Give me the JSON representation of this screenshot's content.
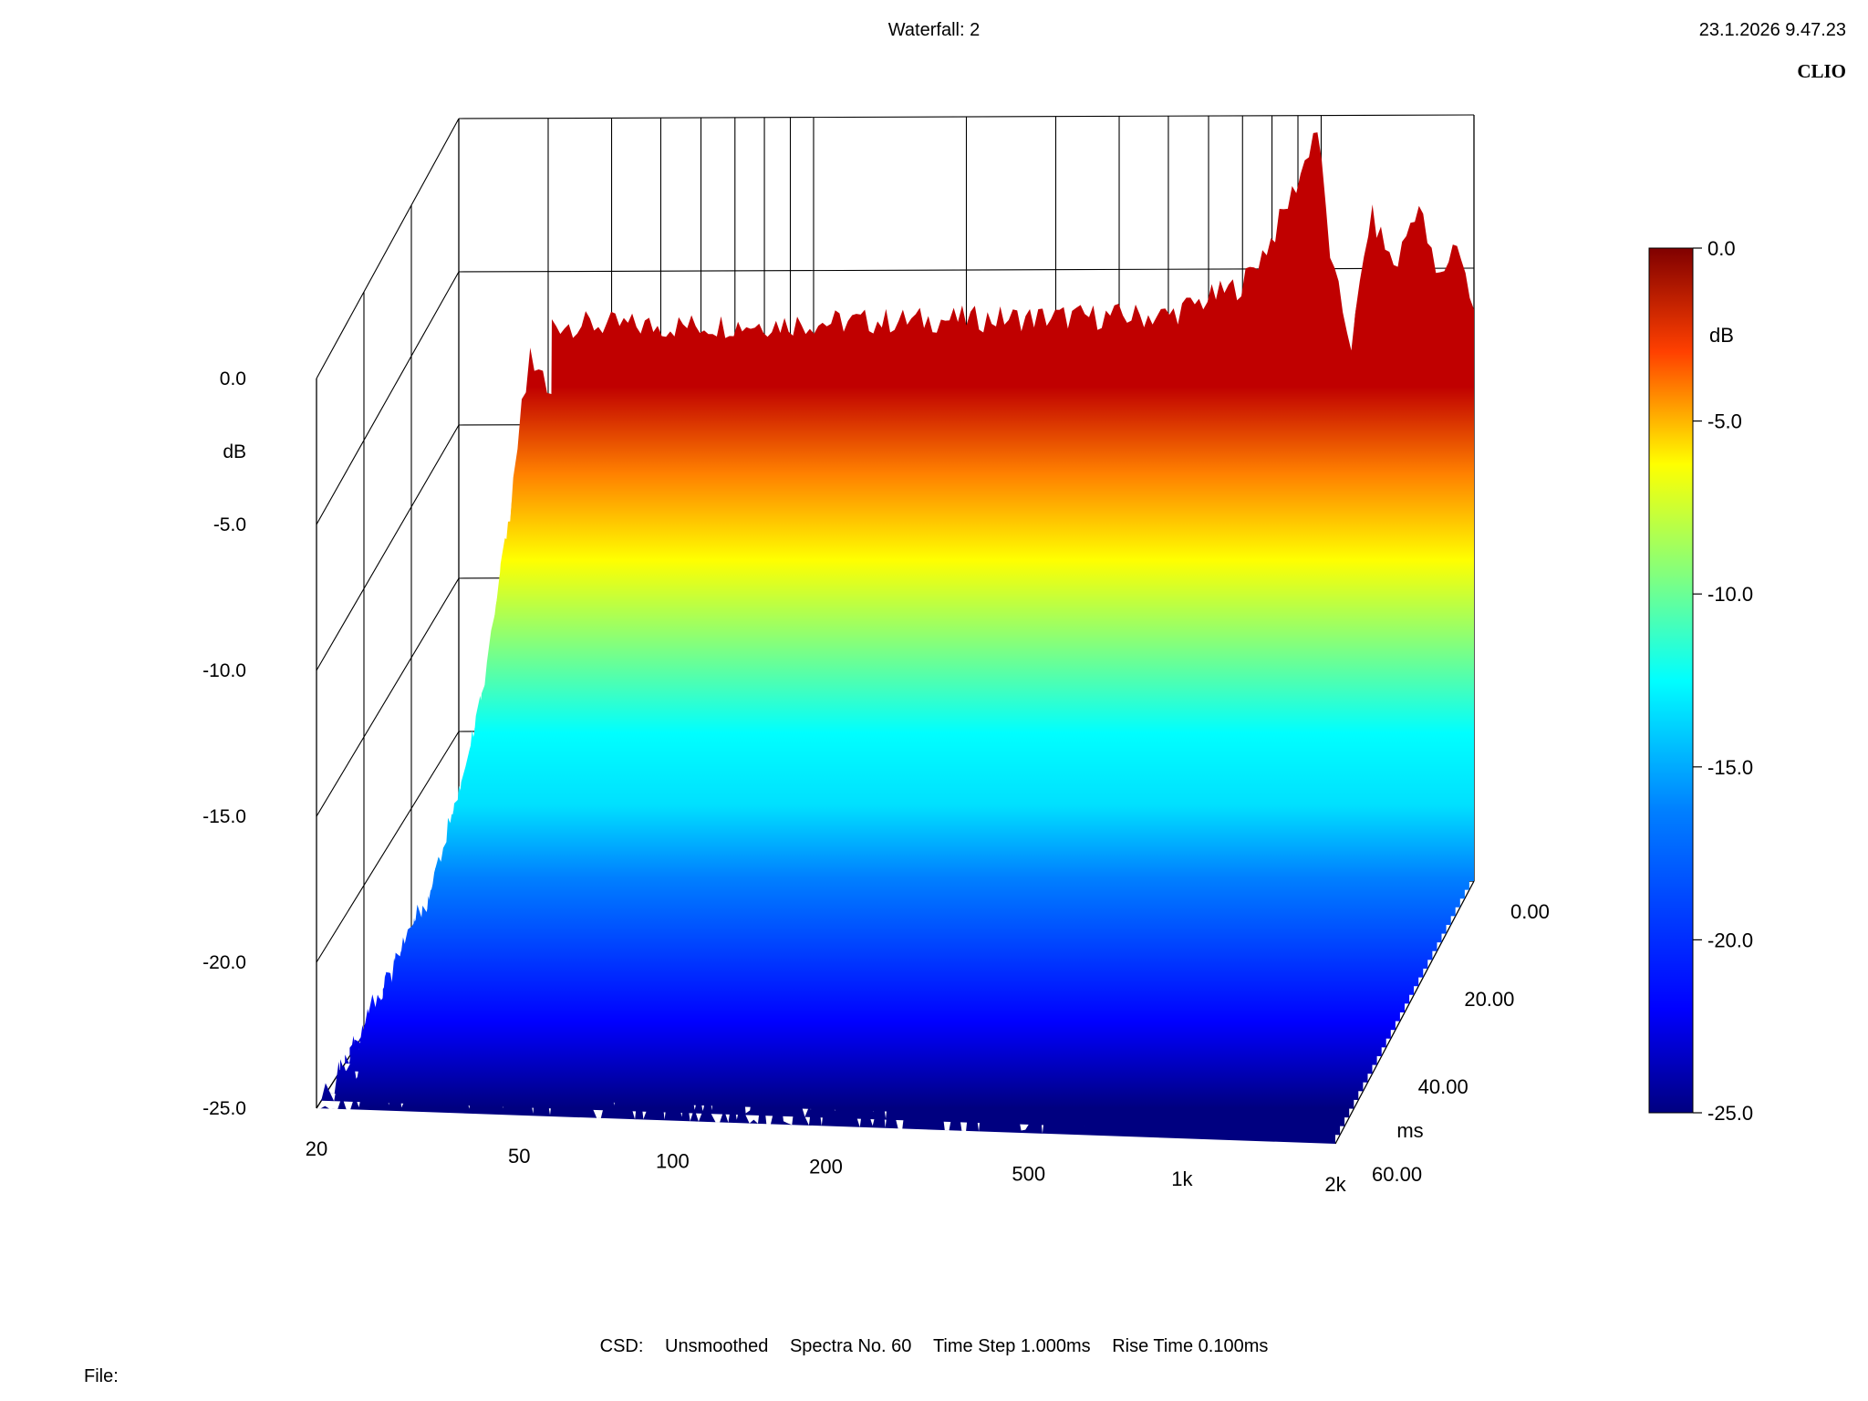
{
  "header": {
    "title": "Waterfall: 2",
    "datetime": "23.1.2026 9.47.23",
    "brand": "CLIO"
  },
  "footer": {
    "type_label": "CSD:",
    "smoothing": "Unsmoothed",
    "spectra": "Spectra No. 60",
    "time_step": "Time Step 1.000ms",
    "rise_time": "Rise Time 0.100ms",
    "file_label": "File:"
  },
  "chart_data": {
    "type": "waterfall",
    "x_ticks": [
      "20",
      "50",
      "100",
      "200",
      "500",
      "1k",
      "2k"
    ],
    "x_tick_values": [
      20,
      50,
      100,
      200,
      500,
      1000,
      2000
    ],
    "x_range": [
      20,
      2000
    ],
    "x_scale": "log",
    "y_ticks": [
      "0.0",
      "-5.0",
      "-10.0",
      "-15.0",
      "-20.0",
      "-25.0"
    ],
    "y_unit": "dB",
    "y_range": [
      -25,
      0
    ],
    "z_ticks": [
      "0.00",
      "20.00",
      "40.00",
      "60.00"
    ],
    "z_unit": "ms",
    "z_range": [
      0,
      60
    ],
    "colorbar_ticks": [
      "0.0",
      "-5.0",
      "-10.0",
      "-15.0",
      "-20.0",
      "-25.0"
    ],
    "colorbar_unit": "dB",
    "colormap": [
      "#000080",
      "#0000ff",
      "#0080ff",
      "#00ffff",
      "#80ff80",
      "#ffff00",
      "#ff8000",
      "#ff0000",
      "#800000"
    ],
    "slices": [
      {
        "time_ms": 0,
        "points": [
          [
            30,
            -6.7
          ],
          [
            50,
            -6.8
          ],
          [
            100,
            -6.7
          ],
          [
            200,
            -6.6
          ],
          [
            500,
            -6.5
          ],
          [
            700,
            -5.5
          ],
          [
            800,
            -4.0
          ],
          [
            880,
            -2.5
          ],
          [
            930,
            -1.5
          ],
          [
            980,
            -0.2
          ],
          [
            1050,
            -5.0
          ],
          [
            1150,
            -7.5
          ],
          [
            1250,
            -3.2
          ],
          [
            1400,
            -5.0
          ],
          [
            1550,
            -2.8
          ],
          [
            1700,
            -5.5
          ],
          [
            1850,
            -4.0
          ],
          [
            2000,
            -6.5
          ]
        ]
      },
      {
        "time_ms": 10,
        "points": [
          [
            20,
            -13.5
          ],
          [
            30,
            -13.0
          ],
          [
            50,
            -14.0
          ],
          [
            100,
            -15.5
          ],
          [
            200,
            -16.0
          ],
          [
            500,
            -15.5
          ],
          [
            800,
            -11.0
          ],
          [
            1000,
            -9.0
          ],
          [
            1100,
            -13.5
          ],
          [
            1300,
            -11.5
          ],
          [
            1500,
            -13.0
          ],
          [
            1800,
            -12.5
          ],
          [
            2000,
            -14.0
          ]
        ]
      },
      {
        "time_ms": 20,
        "points": [
          [
            20,
            -17.0
          ],
          [
            40,
            -16.5
          ],
          [
            60,
            -18.5
          ],
          [
            100,
            -18.5
          ],
          [
            200,
            -19.0
          ],
          [
            500,
            -19.0
          ],
          [
            800,
            -15.5
          ],
          [
            1000,
            -14.5
          ],
          [
            1300,
            -16.0
          ],
          [
            1600,
            -16.5
          ],
          [
            2000,
            -17.5
          ]
        ]
      },
      {
        "time_ms": 40,
        "points": [
          [
            20,
            -20.5
          ],
          [
            50,
            -20.5
          ],
          [
            100,
            -21.0
          ],
          [
            200,
            -21.5
          ],
          [
            500,
            -21.5
          ],
          [
            800,
            -19.5
          ],
          [
            1000,
            -18.5
          ],
          [
            1500,
            -20.0
          ],
          [
            2000,
            -21.0
          ]
        ]
      },
      {
        "time_ms": 60,
        "points": [
          [
            20,
            -24.0
          ],
          [
            50,
            -24.0
          ],
          [
            100,
            -24.5
          ],
          [
            200,
            -24.5
          ],
          [
            500,
            -24.3
          ],
          [
            800,
            -23.5
          ],
          [
            1000,
            -23.0
          ],
          [
            1500,
            -23.5
          ],
          [
            2000,
            -24.0
          ]
        ]
      }
    ]
  }
}
